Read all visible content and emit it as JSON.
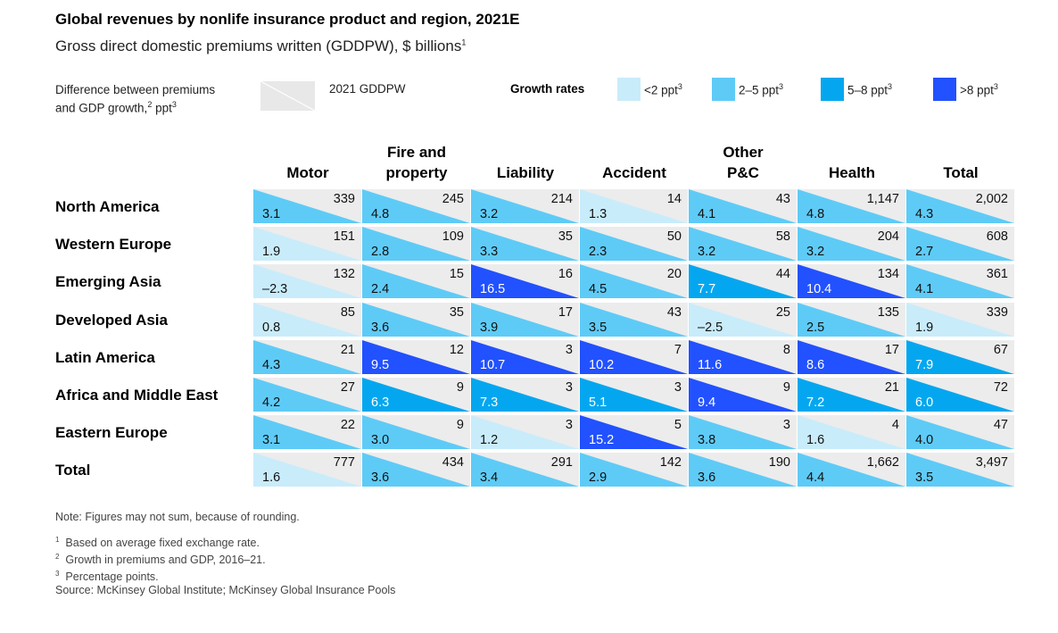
{
  "title": "Global revenues by nonlife insurance product and region, 2021E",
  "subtitle": "Gross direct domestic premiums written (GDDPW), $ billions",
  "subtitle_sup": "1",
  "legend": {
    "difference_label_line1": "Difference between premiums",
    "difference_label_line2": "and GDP growth,",
    "difference_label_sup1": "2",
    "difference_label_unit": " ppt",
    "difference_label_sup2": "3",
    "gddpw_label": "2021 GDDPW",
    "growth_title": "Growth rates",
    "growth_items": [
      {
        "label": "<2 ppt",
        "sup": "3",
        "color": "#c9ecfa"
      },
      {
        "label": "2–5 ppt",
        "sup": "3",
        "color": "#5ecbf7"
      },
      {
        "label": "5–8 ppt",
        "sup": "3",
        "color": "#04a7ef"
      },
      {
        "label": ">8 ppt",
        "sup": "3",
        "color": "#2251ff"
      }
    ]
  },
  "colors": {
    "cell_background": "#ececec",
    "lt2": "#c9ecfa",
    "b2to5": "#5ecbf7",
    "b5to8": "#04a7ef",
    "gt8": "#2251ff"
  },
  "columns": [
    {
      "line1": "",
      "line2": "Motor"
    },
    {
      "line1": "Fire and",
      "line2": "property"
    },
    {
      "line1": "",
      "line2": "Liability"
    },
    {
      "line1": "",
      "line2": "Accident"
    },
    {
      "line1": "Other",
      "line2": "P&C"
    },
    {
      "line1": "",
      "line2": "Health"
    },
    {
      "line1": "",
      "line2": "Total"
    }
  ],
  "rows": [
    {
      "label": "North America",
      "cells": [
        {
          "premium": "339",
          "growth": "3.1",
          "cls": "b2to5"
        },
        {
          "premium": "245",
          "growth": "4.8",
          "cls": "b2to5"
        },
        {
          "premium": "214",
          "growth": "3.2",
          "cls": "b2to5"
        },
        {
          "premium": "14",
          "growth": "1.3",
          "cls": "lt2"
        },
        {
          "premium": "43",
          "growth": "4.1",
          "cls": "b2to5"
        },
        {
          "premium": "1,147",
          "growth": "4.8",
          "cls": "b2to5"
        },
        {
          "premium": "2,002",
          "growth": "4.3",
          "cls": "b2to5"
        }
      ]
    },
    {
      "label": "Western Europe",
      "cells": [
        {
          "premium": "151",
          "growth": "1.9",
          "cls": "lt2"
        },
        {
          "premium": "109",
          "growth": "2.8",
          "cls": "b2to5"
        },
        {
          "premium": "35",
          "growth": "3.3",
          "cls": "b2to5"
        },
        {
          "premium": "50",
          "growth": "2.3",
          "cls": "b2to5"
        },
        {
          "premium": "58",
          "growth": "3.2",
          "cls": "b2to5"
        },
        {
          "premium": "204",
          "growth": "3.2",
          "cls": "b2to5"
        },
        {
          "premium": "608",
          "growth": "2.7",
          "cls": "b2to5"
        }
      ]
    },
    {
      "label": "Emerging Asia",
      "cells": [
        {
          "premium": "132",
          "growth": "–2.3",
          "cls": "lt2"
        },
        {
          "premium": "15",
          "growth": "2.4",
          "cls": "b2to5"
        },
        {
          "premium": "16",
          "growth": "16.5",
          "cls": "gt8"
        },
        {
          "premium": "20",
          "growth": "4.5",
          "cls": "b2to5"
        },
        {
          "premium": "44",
          "growth": "7.7",
          "cls": "b5to8"
        },
        {
          "premium": "134",
          "growth": "10.4",
          "cls": "gt8"
        },
        {
          "premium": "361",
          "growth": "4.1",
          "cls": "b2to5"
        }
      ]
    },
    {
      "label": "Developed Asia",
      "cells": [
        {
          "premium": "85",
          "growth": "0.8",
          "cls": "lt2"
        },
        {
          "premium": "35",
          "growth": "3.6",
          "cls": "b2to5"
        },
        {
          "premium": "17",
          "growth": "3.9",
          "cls": "b2to5"
        },
        {
          "premium": "43",
          "growth": "3.5",
          "cls": "b2to5"
        },
        {
          "premium": "25",
          "growth": "–2.5",
          "cls": "lt2"
        },
        {
          "premium": "135",
          "growth": "2.5",
          "cls": "b2to5"
        },
        {
          "premium": "339",
          "growth": "1.9",
          "cls": "lt2"
        }
      ]
    },
    {
      "label": "Latin America",
      "cells": [
        {
          "premium": "21",
          "growth": "4.3",
          "cls": "b2to5"
        },
        {
          "premium": "12",
          "growth": "9.5",
          "cls": "gt8"
        },
        {
          "premium": "3",
          "growth": "10.7",
          "cls": "gt8"
        },
        {
          "premium": "7",
          "growth": "10.2",
          "cls": "gt8"
        },
        {
          "premium": "8",
          "growth": "11.6",
          "cls": "gt8"
        },
        {
          "premium": "17",
          "growth": "8.6",
          "cls": "gt8"
        },
        {
          "premium": "67",
          "growth": "7.9",
          "cls": "b5to8"
        }
      ]
    },
    {
      "label": "Africa and Middle East",
      "cells": [
        {
          "premium": "27",
          "growth": "4.2",
          "cls": "b2to5"
        },
        {
          "premium": "9",
          "growth": "6.3",
          "cls": "b5to8"
        },
        {
          "premium": "3",
          "growth": "7.3",
          "cls": "b5to8"
        },
        {
          "premium": "3",
          "growth": "5.1",
          "cls": "b5to8"
        },
        {
          "premium": "9",
          "growth": "9.4",
          "cls": "gt8"
        },
        {
          "premium": "21",
          "growth": "7.2",
          "cls": "b5to8"
        },
        {
          "premium": "72",
          "growth": "6.0",
          "cls": "b5to8"
        }
      ]
    },
    {
      "label": "Eastern Europe",
      "cells": [
        {
          "premium": "22",
          "growth": "3.1",
          "cls": "b2to5"
        },
        {
          "premium": "9",
          "growth": "3.0",
          "cls": "b2to5"
        },
        {
          "premium": "3",
          "growth": "1.2",
          "cls": "lt2"
        },
        {
          "premium": "5",
          "growth": "15.2",
          "cls": "gt8"
        },
        {
          "premium": "3",
          "growth": "3.8",
          "cls": "b2to5"
        },
        {
          "premium": "4",
          "growth": "1.6",
          "cls": "lt2"
        },
        {
          "premium": "47",
          "growth": "4.0",
          "cls": "b2to5"
        }
      ]
    },
    {
      "label": "Total",
      "cells": [
        {
          "premium": "777",
          "growth": "1.6",
          "cls": "lt2"
        },
        {
          "premium": "434",
          "growth": "3.6",
          "cls": "b2to5"
        },
        {
          "premium": "291",
          "growth": "3.4",
          "cls": "b2to5"
        },
        {
          "premium": "142",
          "growth": "2.9",
          "cls": "b2to5"
        },
        {
          "premium": "190",
          "growth": "3.6",
          "cls": "b2to5"
        },
        {
          "premium": "1,662",
          "growth": "4.4",
          "cls": "b2to5"
        },
        {
          "premium": "3,497",
          "growth": "3.5",
          "cls": "b2to5"
        }
      ]
    }
  ],
  "notes": {
    "note": "Note: Figures may not sum, because of rounding.",
    "footnotes": [
      {
        "sup": "1",
        "text": "Based on average fixed exchange rate."
      },
      {
        "sup": "2",
        "text": "Growth in premiums and GDP, 2016–21."
      },
      {
        "sup": "3",
        "text": "Percentage points."
      }
    ],
    "source": "Source: McKinsey Global Institute; McKinsey Global Insurance Pools"
  },
  "chart_data": {
    "type": "table",
    "title": "Global revenues by nonlife insurance product and region, 2021E",
    "subtitle": "Gross direct domestic premiums written (GDDPW), $ billions",
    "columns": [
      "Motor",
      "Fire and property",
      "Liability",
      "Accident",
      "Other P&C",
      "Health",
      "Total"
    ],
    "rows": [
      "North America",
      "Western Europe",
      "Emerging Asia",
      "Developed Asia",
      "Latin America",
      "Africa and Middle East",
      "Eastern Europe",
      "Total"
    ],
    "premiums_2021_gddpw": [
      [
        339,
        245,
        214,
        14,
        43,
        1147,
        2002
      ],
      [
        151,
        109,
        35,
        50,
        58,
        204,
        608
      ],
      [
        132,
        15,
        16,
        20,
        44,
        134,
        361
      ],
      [
        85,
        35,
        17,
        43,
        25,
        135,
        339
      ],
      [
        21,
        12,
        3,
        7,
        8,
        17,
        67
      ],
      [
        27,
        9,
        3,
        3,
        9,
        21,
        72
      ],
      [
        22,
        9,
        3,
        5,
        3,
        4,
        47
      ],
      [
        777,
        434,
        291,
        142,
        190,
        1662,
        3497
      ]
    ],
    "growth_difference_ppt": [
      [
        3.1,
        4.8,
        3.2,
        1.3,
        4.1,
        4.8,
        4.3
      ],
      [
        1.9,
        2.8,
        3.3,
        2.3,
        3.2,
        3.2,
        2.7
      ],
      [
        -2.3,
        2.4,
        16.5,
        4.5,
        7.7,
        10.4,
        4.1
      ],
      [
        0.8,
        3.6,
        3.9,
        3.5,
        -2.5,
        2.5,
        1.9
      ],
      [
        4.3,
        9.5,
        10.7,
        10.2,
        11.6,
        8.6,
        7.9
      ],
      [
        4.2,
        6.3,
        7.3,
        5.1,
        9.4,
        7.2,
        6.0
      ],
      [
        3.1,
        3.0,
        1.2,
        15.2,
        3.8,
        1.6,
        4.0
      ],
      [
        1.6,
        3.6,
        3.4,
        2.9,
        3.6,
        4.4,
        3.5
      ]
    ],
    "growth_rate_bins": [
      "<2 ppt",
      "2–5 ppt",
      "5–8 ppt",
      ">8 ppt"
    ]
  }
}
